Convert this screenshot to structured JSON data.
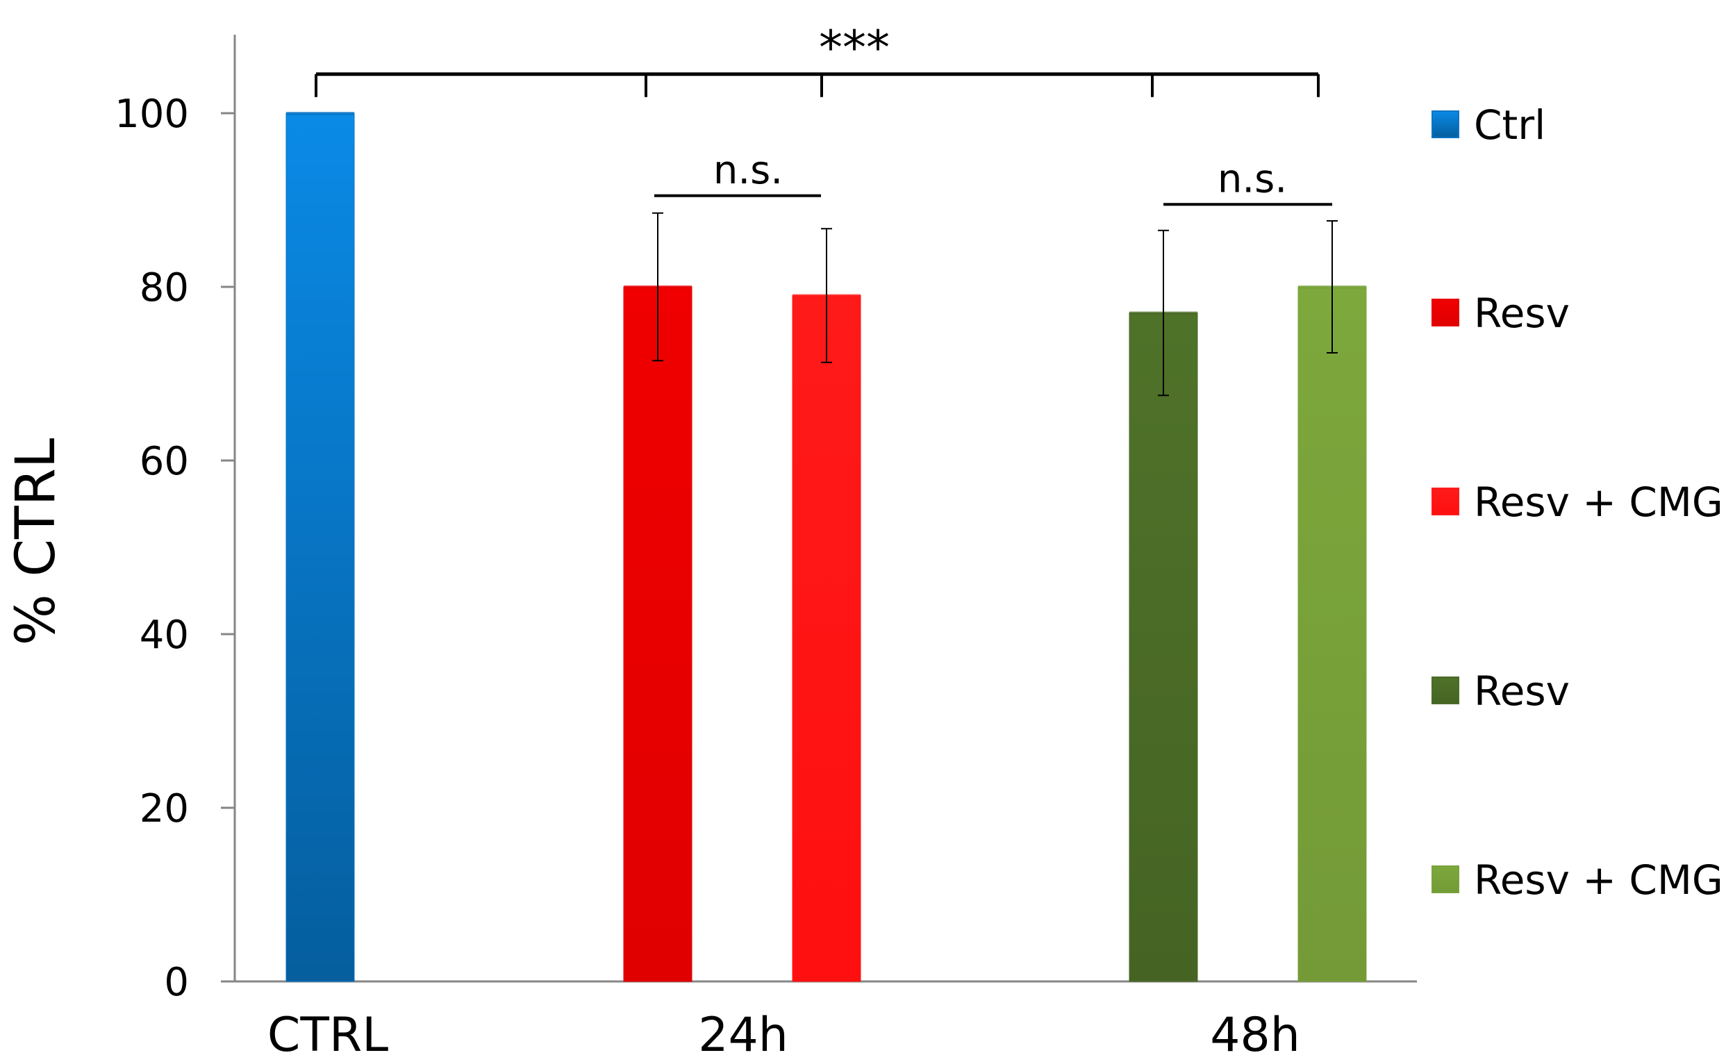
{
  "chart_data": {
    "type": "bar",
    "title": "",
    "xlabel": "",
    "ylabel": "% CTRL",
    "ylim": [
      0,
      100
    ],
    "yticks": [
      0,
      20,
      40,
      60,
      80,
      100
    ],
    "categories": [
      "CTRL",
      "24h",
      "48h"
    ],
    "series": [
      {
        "name": "Ctrl",
        "color": "#0A74C4",
        "category": "CTRL",
        "value": 100,
        "error": null
      },
      {
        "name": "Resv",
        "color": "#E60000",
        "category": "24h",
        "value": 80,
        "error": 8.5
      },
      {
        "name": "Resv + CMG",
        "color": "#FF1A1A",
        "category": "24h",
        "value": 79,
        "error": 7.7
      },
      {
        "name": "Resv",
        "color": "#4A6B27",
        "category": "48h",
        "value": 77,
        "error": 9.5
      },
      {
        "name": "Resv + CMG",
        "color": "#78A23A",
        "category": "48h",
        "value": 80,
        "error": 7.6
      }
    ],
    "significance": [
      {
        "label": "***",
        "bars": [
          0,
          1,
          2,
          3,
          4
        ],
        "y": 104.5
      },
      {
        "label": "n.s.",
        "bars": [
          1,
          2
        ],
        "y": 90.5
      },
      {
        "label": "n.s.",
        "bars": [
          3,
          4
        ],
        "y": 89.5
      }
    ],
    "legend": [
      "Ctrl",
      "Resv",
      "Resv + CMG",
      "Resv",
      "Resv + CMG"
    ],
    "legend_position": "right",
    "grid": false
  }
}
